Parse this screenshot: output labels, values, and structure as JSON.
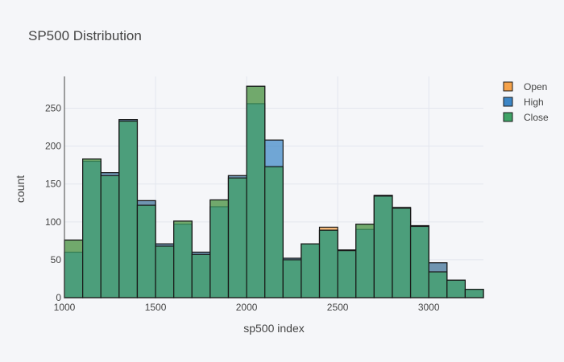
{
  "chart_data": {
    "type": "bar",
    "barmode": "overlay",
    "title": "SP500 Distribution",
    "xlabel": "sp500 index",
    "ylabel": "count",
    "xlim": [
      1000,
      3300
    ],
    "ylim": [
      0,
      292
    ],
    "bin_start": 1000,
    "bin_width": 100,
    "x_ticks": [
      1000,
      1500,
      2000,
      2500,
      3000
    ],
    "y_ticks": [
      0,
      50,
      100,
      150,
      200,
      250
    ],
    "grid": true,
    "legend_position": "top-right",
    "series": [
      {
        "name": "Open",
        "color": "#f5a24a",
        "values": [
          76,
          183,
          165,
          235,
          128,
          71,
          101,
          60,
          129,
          161,
          279,
          172,
          52,
          71,
          93,
          63,
          97,
          135,
          119,
          95,
          46,
          23,
          11
        ]
      },
      {
        "name": "High",
        "color": "#3d86c6",
        "values": [
          60,
          180,
          165,
          235,
          128,
          71,
          97,
          60,
          120,
          161,
          256,
          208,
          52,
          71,
          89,
          63,
          90,
          135,
          119,
          95,
          46,
          23,
          11
        ]
      },
      {
        "name": "Close",
        "color": "#3fa266",
        "values": [
          76,
          183,
          161,
          233,
          122,
          68,
          101,
          57,
          129,
          158,
          279,
          173,
          50,
          71,
          89,
          62,
          97,
          134,
          118,
          94,
          34,
          23,
          11
        ]
      }
    ]
  }
}
